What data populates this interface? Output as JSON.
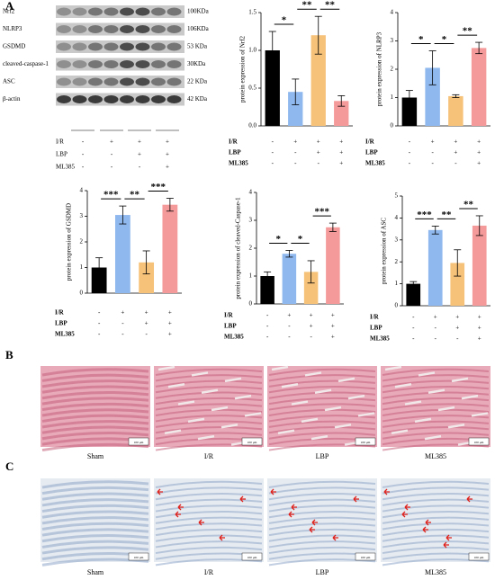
{
  "panel_labels": {
    "a": "A",
    "b": "B",
    "c": "C"
  },
  "blot": {
    "proteins": [
      {
        "name": "Nrf2",
        "size": "100KDa"
      },
      {
        "name": "NLRP3",
        "size": "106KDa"
      },
      {
        "name": "GSDMD",
        "size": "53 KDa"
      },
      {
        "name": "cleaved-caspase-1",
        "size": "30KDa"
      },
      {
        "name": "ASC",
        "size": "22 KDa"
      },
      {
        "name": "β-actin",
        "size": "42 KDa"
      }
    ],
    "conditions": [
      {
        "label": "I/R",
        "marks": [
          "-",
          "+",
          "+",
          "+"
        ]
      },
      {
        "label": "LBP",
        "marks": [
          "-",
          "-",
          "+",
          "+"
        ]
      },
      {
        "label": "ML385",
        "marks": [
          "-",
          "-",
          "-",
          "+"
        ]
      }
    ]
  },
  "chart_data": [
    {
      "type": "bar",
      "ylabel": "protein expression of Nrf2",
      "categories": [
        null,
        null,
        null,
        null
      ],
      "values": [
        1.0,
        0.45,
        1.2,
        0.33
      ],
      "errors": [
        0.25,
        0.17,
        0.25,
        0.07
      ],
      "colors": [
        "#000000",
        "#8fb8ef",
        "#f6c27a",
        "#f59a9a"
      ],
      "ylim": [
        0,
        1.5
      ],
      "yticks": [
        {
          "value": 0,
          "label": "0.0"
        },
        {
          "value": 0.5,
          "label": "0.5"
        },
        {
          "value": 1,
          "label": "1.0"
        },
        {
          "value": 1.5,
          "label": "1.5"
        }
      ],
      "comparisons": [
        {
          "label": "*",
          "pair": [
            0,
            1
          ]
        },
        {
          "label": "**",
          "pair": [
            1,
            2
          ]
        },
        {
          "label": "**",
          "pair": [
            2,
            3
          ]
        }
      ],
      "condition_table": [
        {
          "label": "I/R",
          "marks": [
            "-",
            "+",
            "+",
            "+"
          ]
        },
        {
          "label": "LBP",
          "marks": [
            "-",
            "-",
            "+",
            "+"
          ]
        },
        {
          "label": "ML385",
          "marks": [
            "-",
            "-",
            "-",
            "+"
          ]
        }
      ]
    },
    {
      "type": "bar",
      "ylabel": "protein expression of NLRP3",
      "categories": [
        null,
        null,
        null,
        null
      ],
      "values": [
        1.0,
        2.05,
        1.05,
        2.75
      ],
      "errors": [
        0.25,
        0.6,
        0.05,
        0.2
      ],
      "colors": [
        "#000000",
        "#8fb8ef",
        "#f6c27a",
        "#f59a9a"
      ],
      "ylim": [
        0,
        4
      ],
      "yticks": [
        0,
        1,
        2,
        3,
        4
      ],
      "comparisons": [
        {
          "label": "*",
          "pair": [
            0,
            1
          ]
        },
        {
          "label": "*",
          "pair": [
            1,
            2
          ]
        },
        {
          "label": "**",
          "pair": [
            2,
            3
          ]
        }
      ],
      "condition_table": [
        {
          "label": "I/R",
          "marks": [
            "-",
            "+",
            "+",
            "+"
          ]
        },
        {
          "label": "LBP",
          "marks": [
            "-",
            "-",
            "+",
            "+"
          ]
        },
        {
          "label": "ML385",
          "marks": [
            "-",
            "-",
            "-",
            "+"
          ]
        }
      ]
    },
    {
      "type": "bar",
      "ylabel": "protein expression of GSDMD",
      "categories": [
        null,
        null,
        null,
        null
      ],
      "values": [
        1.0,
        3.05,
        1.2,
        3.45
      ],
      "errors": [
        0.38,
        0.35,
        0.45,
        0.25
      ],
      "colors": [
        "#000000",
        "#8fb8ef",
        "#f6c27a",
        "#f59a9a"
      ],
      "ylim": [
        0,
        4
      ],
      "yticks": [
        0,
        1,
        2,
        3,
        4
      ],
      "comparisons": [
        {
          "label": "***",
          "pair": [
            0,
            1
          ]
        },
        {
          "label": "**",
          "pair": [
            1,
            2
          ]
        },
        {
          "label": "***",
          "pair": [
            2,
            3
          ]
        }
      ],
      "condition_table": [
        {
          "label": "I/R",
          "marks": [
            "-",
            "+",
            "+",
            "+"
          ]
        },
        {
          "label": "LBP",
          "marks": [
            "-",
            "-",
            "+",
            "+"
          ]
        },
        {
          "label": "ML385",
          "marks": [
            "-",
            "-",
            "-",
            "+"
          ]
        }
      ]
    },
    {
      "type": "bar",
      "ylabel": "protein expression of cleaved-Caspase-1",
      "categories": [
        null,
        null,
        null,
        null
      ],
      "values": [
        1.0,
        1.8,
        1.15,
        2.75
      ],
      "errors": [
        0.15,
        0.12,
        0.4,
        0.15
      ],
      "colors": [
        "#000000",
        "#8fb8ef",
        "#f6c27a",
        "#f59a9a"
      ],
      "ylim": [
        0,
        4
      ],
      "yticks": [
        0,
        1,
        2,
        3,
        4
      ],
      "comparisons": [
        {
          "label": "*",
          "pair": [
            0,
            1
          ]
        },
        {
          "label": "*",
          "pair": [
            1,
            2
          ]
        },
        {
          "label": "***",
          "pair": [
            2,
            3
          ]
        }
      ],
      "condition_table": [
        {
          "label": "I/R",
          "marks": [
            "-",
            "+",
            "+",
            "+"
          ]
        },
        {
          "label": "LBP",
          "marks": [
            "-",
            "-",
            "+",
            "+"
          ]
        },
        {
          "label": "ML385",
          "marks": [
            "-",
            "-",
            "-",
            "+"
          ]
        }
      ]
    },
    {
      "type": "bar",
      "ylabel": "protein expression of ASC",
      "categories": [
        null,
        null,
        null,
        null
      ],
      "values": [
        1.0,
        3.45,
        1.95,
        3.65
      ],
      "errors": [
        0.1,
        0.18,
        0.6,
        0.45
      ],
      "colors": [
        "#000000",
        "#8fb8ef",
        "#f6c27a",
        "#f59a9a"
      ],
      "ylim": [
        0,
        5
      ],
      "yticks": [
        0,
        1,
        2,
        3,
        4,
        5
      ],
      "comparisons": [
        {
          "label": "***",
          "pair": [
            0,
            1
          ]
        },
        {
          "label": "**",
          "pair": [
            1,
            2
          ]
        },
        {
          "label": "**",
          "pair": [
            2,
            3
          ]
        }
      ],
      "condition_table": [
        {
          "label": "I/R",
          "marks": [
            "-",
            "+",
            "+",
            "+"
          ]
        },
        {
          "label": "LBP",
          "marks": [
            "-",
            "-",
            "+",
            "+"
          ]
        },
        {
          "label": "ML385",
          "marks": [
            "-",
            "-",
            "-",
            "+"
          ]
        }
      ]
    }
  ],
  "histology": {
    "captions": [
      "Sham",
      "I/R",
      "LBP",
      "ML385"
    ],
    "scale_bar": "100 μm"
  }
}
